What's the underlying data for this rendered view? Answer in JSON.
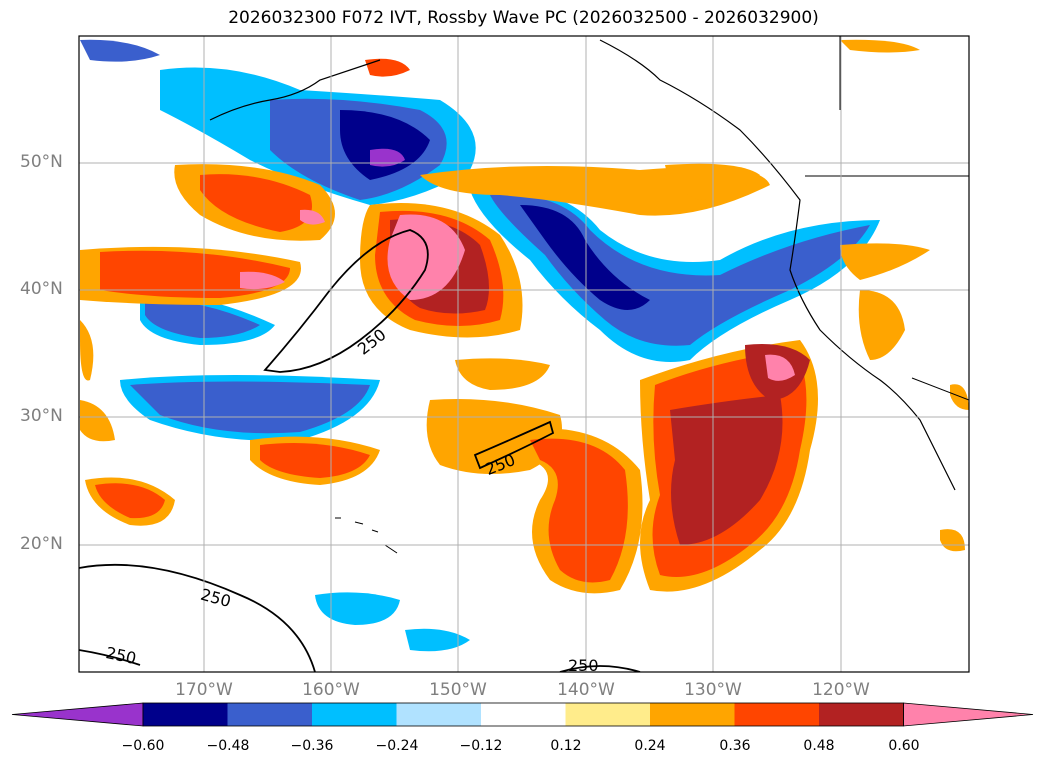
{
  "title": "2026032300 F072 IVT, Rossby Wave PC (2026032500 - 2026032900)",
  "lat_labels": [
    "50°N",
    "40°N",
    "30°N",
    "20°N"
  ],
  "lon_labels": [
    "170°W",
    "160°W",
    "150°W",
    "140°W",
    "130°W",
    "120°W"
  ],
  "contour_labels": [
    "250",
    "250",
    "250",
    "250",
    "250"
  ],
  "colorbar": {
    "ticks": [
      "−0.60",
      "−0.48",
      "−0.36",
      "−0.24",
      "−0.12",
      "0.12",
      "0.24",
      "0.36",
      "0.48",
      "0.60"
    ],
    "colors": [
      "#9933cc",
      "#00008b",
      "#3a5fcd",
      "#00bfff",
      "#b0e2ff",
      "#ffffff",
      "#ffec8b",
      "#ffa500",
      "#ff4500",
      "#b22222",
      "#ff82ab"
    ]
  }
}
